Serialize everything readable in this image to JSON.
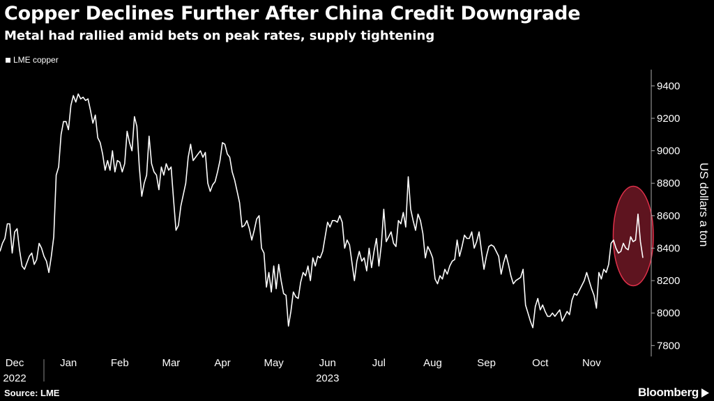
{
  "header": {
    "title": "Copper Declines Further After China Credit Downgrade",
    "subtitle": "Metal had rallied amid bets on peak rates, supply tightening"
  },
  "legend": {
    "label": "LME copper"
  },
  "footer": {
    "source": "Source: LME",
    "brand": "Bloomberg"
  },
  "chart_data": {
    "type": "line",
    "ylabel": "US dollars a ton",
    "ylim": [
      7750,
      9500
    ],
    "yticks": [
      7800,
      8000,
      8200,
      8400,
      8600,
      8800,
      9000,
      9200,
      9400
    ],
    "y_axis_side": "right",
    "grid": false,
    "legend_position": "top-left",
    "x_labels": [
      {
        "month": "Dec",
        "year": "2022",
        "index": 6
      },
      {
        "month": "Jan",
        "year": "",
        "index": 28
      },
      {
        "month": "Feb",
        "year": "",
        "index": 49
      },
      {
        "month": "Mar",
        "year": "",
        "index": 70
      },
      {
        "month": "Apr",
        "year": "",
        "index": 91
      },
      {
        "month": "May",
        "year": "",
        "index": 112
      },
      {
        "month": "Jun",
        "year": "2023",
        "index": 134
      },
      {
        "month": "Jul",
        "year": "",
        "index": 155
      },
      {
        "month": "Aug",
        "year": "",
        "index": 177
      },
      {
        "month": "Sep",
        "year": "",
        "index": 199
      },
      {
        "month": "Oct",
        "year": "",
        "index": 221
      },
      {
        "month": "Nov",
        "year": "",
        "index": 242
      }
    ],
    "series": [
      {
        "name": "LME copper",
        "color": "#ffffff",
        "values": [
          8380,
          8430,
          8460,
          8550,
          8550,
          8370,
          8500,
          8520,
          8390,
          8290,
          8270,
          8310,
          8350,
          8370,
          8300,
          8330,
          8430,
          8400,
          8350,
          8320,
          8250,
          8350,
          8470,
          8850,
          8900,
          9100,
          9180,
          9180,
          9130,
          9280,
          9340,
          9300,
          9350,
          9320,
          9330,
          9310,
          9320,
          9250,
          9170,
          9220,
          9080,
          9050,
          8980,
          8880,
          8940,
          8880,
          9000,
          8870,
          8940,
          8930,
          8870,
          8920,
          9120,
          9050,
          9000,
          9210,
          9150,
          8900,
          8720,
          8800,
          8850,
          9090,
          8920,
          8870,
          8850,
          8760,
          8900,
          8850,
          8920,
          8880,
          8900,
          8700,
          8510,
          8540,
          8660,
          8730,
          8800,
          8960,
          9040,
          8940,
          8960,
          8980,
          9000,
          8960,
          8990,
          8800,
          8750,
          8790,
          8810,
          8870,
          8940,
          9050,
          9040,
          8980,
          8960,
          8870,
          8820,
          8750,
          8680,
          8530,
          8540,
          8570,
          8520,
          8450,
          8510,
          8580,
          8600,
          8400,
          8370,
          8160,
          8250,
          8130,
          8290,
          8150,
          8300,
          8200,
          8120,
          8110,
          7920,
          8010,
          8130,
          8100,
          8090,
          8190,
          8250,
          8230,
          8290,
          8200,
          8340,
          8290,
          8350,
          8340,
          8380,
          8470,
          8560,
          8530,
          8570,
          8570,
          8560,
          8600,
          8560,
          8400,
          8450,
          8420,
          8310,
          8200,
          8320,
          8380,
          8320,
          8340,
          8260,
          8400,
          8280,
          8380,
          8460,
          8290,
          8420,
          8640,
          8440,
          8470,
          8500,
          8430,
          8410,
          8570,
          8550,
          8620,
          8530,
          8840,
          8640,
          8570,
          8510,
          8610,
          8570,
          8490,
          8340,
          8410,
          8380,
          8340,
          8210,
          8180,
          8230,
          8210,
          8270,
          8240,
          8290,
          8320,
          8330,
          8450,
          8350,
          8410,
          8480,
          8460,
          8460,
          8500,
          8400,
          8440,
          8500,
          8380,
          8270,
          8350,
          8410,
          8420,
          8410,
          8380,
          8350,
          8240,
          8310,
          8360,
          8300,
          8230,
          8180,
          8200,
          8210,
          8220,
          8270,
          8050,
          8000,
          7950,
          7910,
          8040,
          8090,
          8020,
          8050,
          8010,
          7980,
          7980,
          8000,
          7980,
          8000,
          8020,
          7950,
          7980,
          8010,
          7990,
          8080,
          8120,
          8110,
          8140,
          8170,
          8200,
          8250,
          8200,
          8150,
          8110,
          8030,
          8250,
          8210,
          8270,
          8250,
          8300,
          8430,
          8450,
          8400,
          8370,
          8380,
          8430,
          8400,
          8390,
          8470,
          8440,
          8450,
          8610,
          8440,
          8340
        ]
      }
    ],
    "annotations": [
      {
        "type": "ellipse-highlight",
        "color": "#e0304a",
        "around_last_points": 10
      }
    ]
  }
}
